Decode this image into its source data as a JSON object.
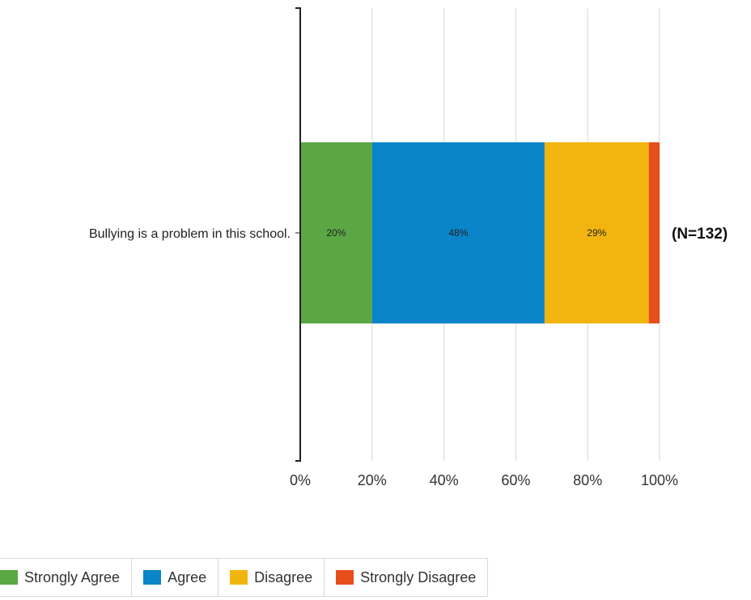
{
  "chart_data": {
    "type": "bar",
    "orientation": "horizontal",
    "stacked": true,
    "categories": [
      "Bullying is a problem in this school."
    ],
    "series": [
      {
        "name": "Strongly Agree",
        "values": [
          20
        ],
        "label": "20%",
        "color": "#5aa744"
      },
      {
        "name": "Agree",
        "values": [
          48
        ],
        "label": "48%",
        "color": "#0a85c8"
      },
      {
        "name": "Disagree",
        "values": [
          29
        ],
        "label": "29%",
        "color": "#f2b50f"
      },
      {
        "name": "Strongly Disagree",
        "values": [
          3
        ],
        "label": "",
        "color": "#e84e1b"
      }
    ],
    "n_label": "(N=132)",
    "xlim": [
      0,
      100
    ],
    "x_ticks": [
      "0%",
      "20%",
      "40%",
      "60%",
      "80%",
      "100%"
    ],
    "grid": true,
    "legend": "bottom"
  }
}
